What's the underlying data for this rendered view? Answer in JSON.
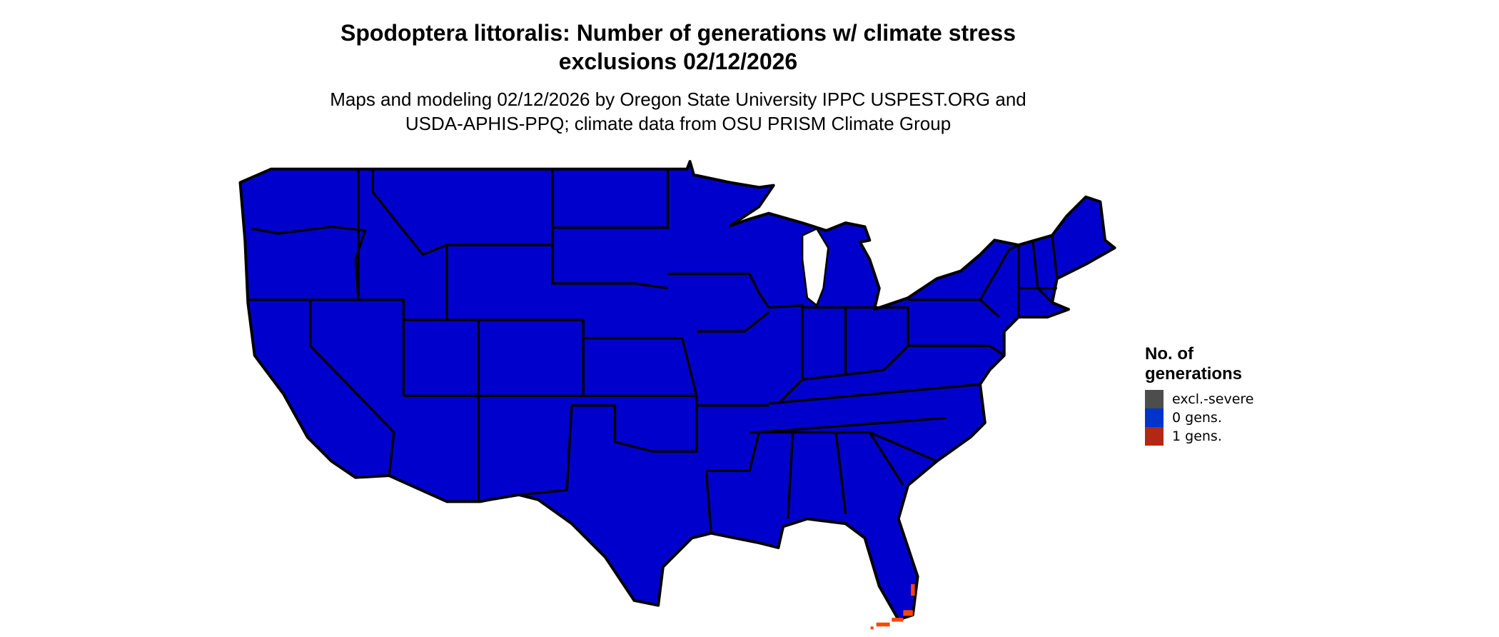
{
  "title_line1": "Spodoptera littoralis: Number of generations w/ climate stress",
  "title_line2": "exclusions 02/12/2026",
  "subtitle_line1": "Maps and modeling 02/12/2026 by Oregon State University IPPC USPEST.ORG and",
  "subtitle_line2": "USDA-APHIS-PPQ; climate data from OSU PRISM Climate Group",
  "map": {
    "region": "Contiguous United States",
    "fill_dominant": "0 gens.",
    "fill_color": "#0000cc",
    "border_color": "#000000",
    "highlight_region": "South Florida and Florida Keys: 1 gens.",
    "highlight_color": "#ff4500"
  },
  "legend": {
    "title_line1": "No. of",
    "title_line2": "generations",
    "items": [
      {
        "label": "excl.-severe",
        "color": "#4d4d4d"
      },
      {
        "label": "0 gens.",
        "color": "#0033cc"
      },
      {
        "label": "1 gens.",
        "color": "#b22814"
      }
    ]
  }
}
